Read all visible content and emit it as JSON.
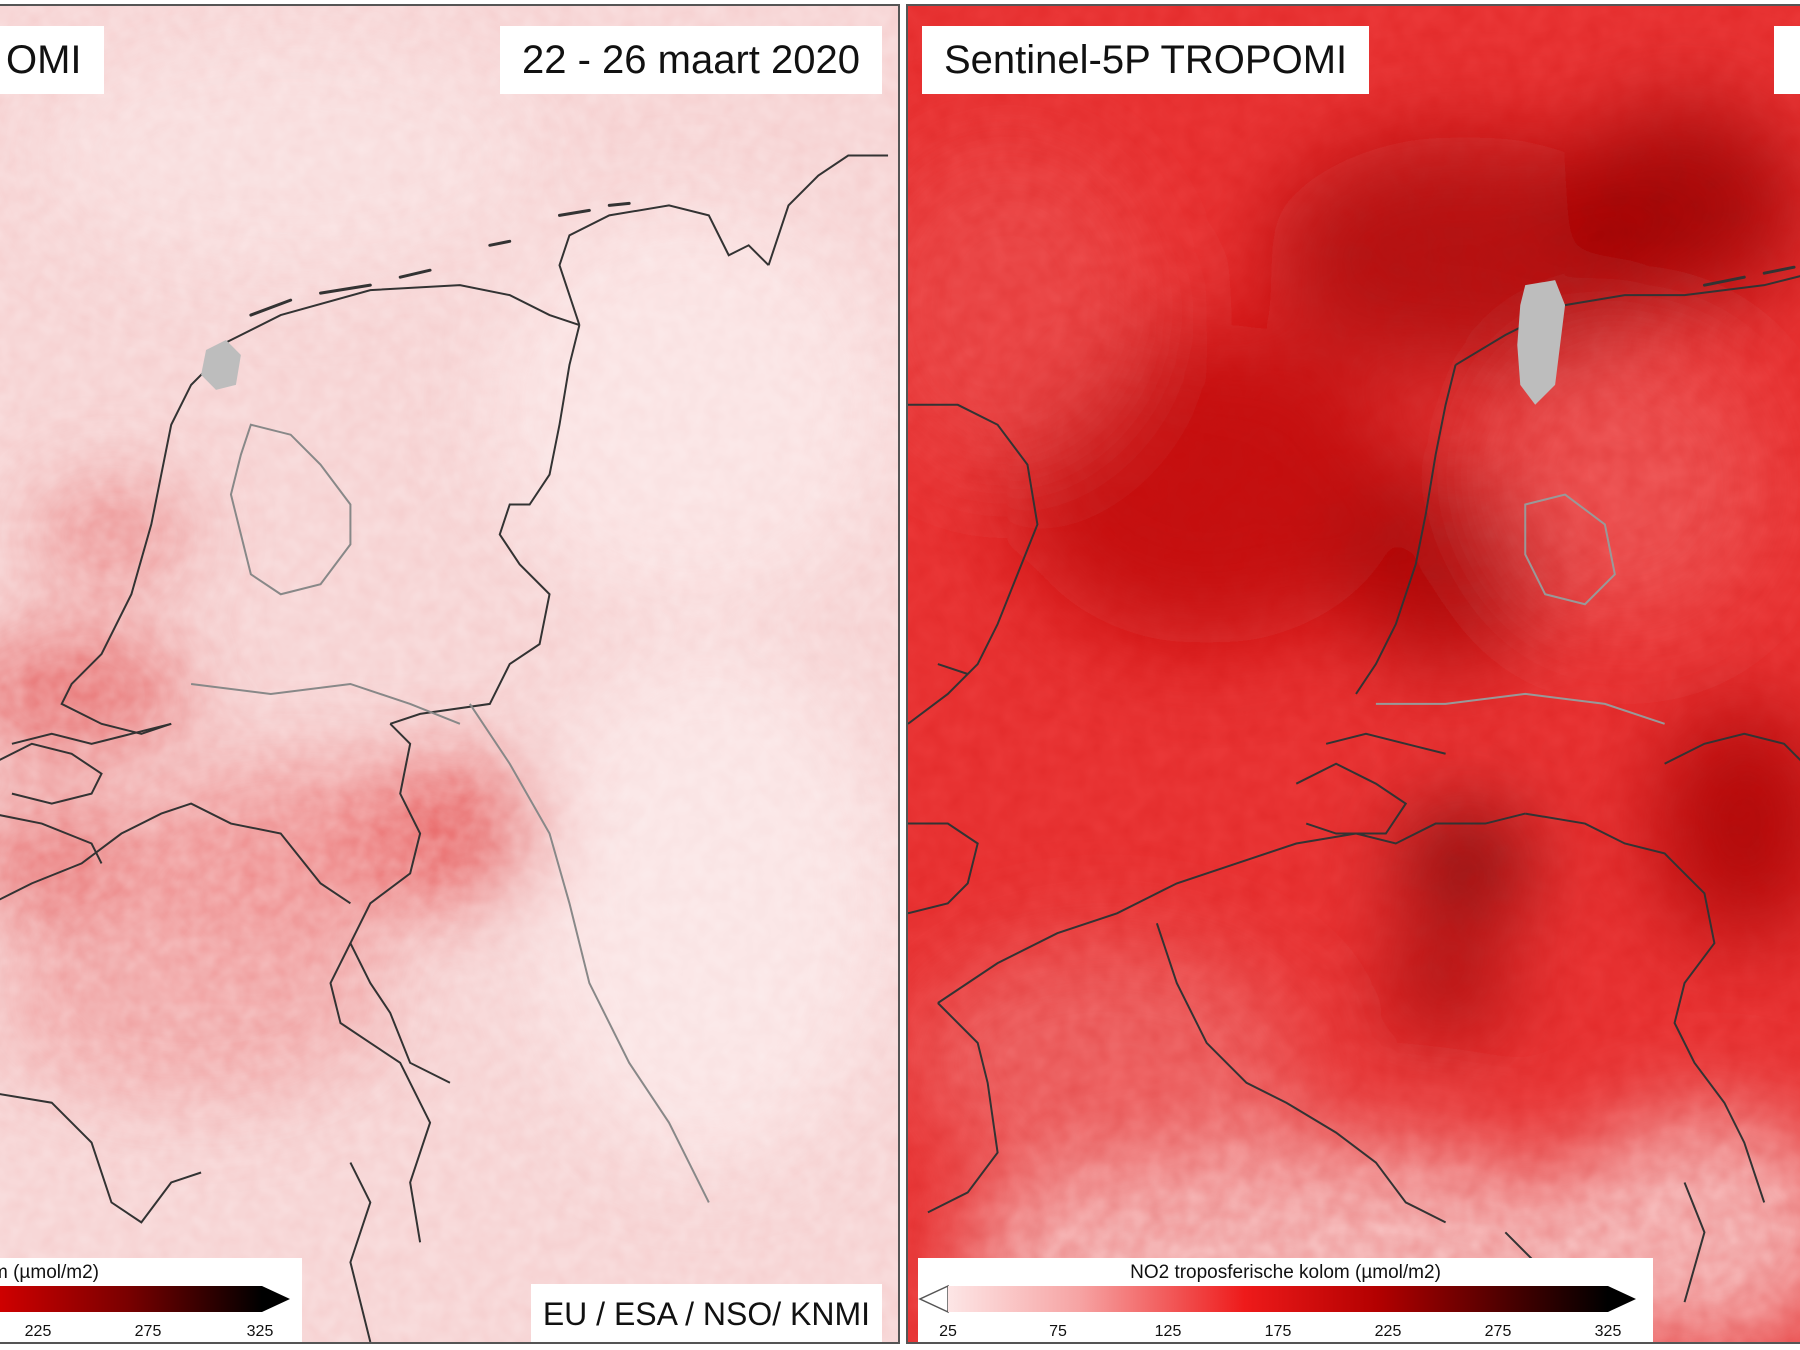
{
  "left_panel": {
    "title_fragment": "OMI",
    "date": "22 - 26 maart 2020",
    "credit": "EU / ESA / NSO/ KNMI",
    "colorbar_title_fragment": "m (µmol/m2)",
    "colorbar_ticks": [
      "225",
      "275",
      "325"
    ]
  },
  "right_panel": {
    "title": "Sentinel-5P TROPOMI",
    "colorbar_title": "NO2 troposferische kolom (µmol/m2)",
    "colorbar_ticks": [
      "25",
      "75",
      "125",
      "175",
      "225",
      "275",
      "325"
    ]
  },
  "colors": {
    "low": "#fde6e6",
    "mid": "#ee1a1a",
    "high": "#000000",
    "land_gap": "#bdbdbd",
    "border_line": "#333333"
  },
  "colorbar_range": [
    25,
    325
  ]
}
